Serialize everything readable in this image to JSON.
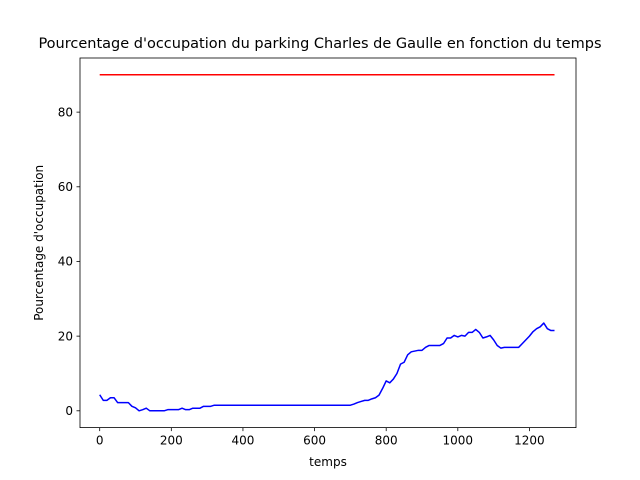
{
  "chart_data": {
    "type": "line",
    "title": "Pourcentage d'occupation du parking Charles de Gaulle en fonction du temps",
    "xlabel": "temps",
    "ylabel": "Pourcentage d'occupation",
    "xlim": [
      -55,
      1330
    ],
    "ylim": [
      -4.5,
      94.5
    ],
    "xticks": [
      0,
      200,
      400,
      600,
      800,
      1000,
      1200
    ],
    "yticks": [
      0,
      20,
      40,
      60,
      80
    ],
    "grid": false,
    "legend": "none",
    "series": [
      {
        "color": "#ff0000",
        "x": [
          0,
          1270
        ],
        "y": [
          90,
          90
        ]
      },
      {
        "color": "#0000ff",
        "x": [
          0,
          10,
          20,
          30,
          40,
          50,
          60,
          70,
          80,
          90,
          100,
          110,
          120,
          130,
          140,
          150,
          160,
          170,
          180,
          190,
          200,
          210,
          220,
          230,
          240,
          250,
          260,
          270,
          280,
          290,
          300,
          310,
          320,
          330,
          340,
          350,
          360,
          370,
          380,
          390,
          400,
          410,
          420,
          430,
          440,
          450,
          460,
          470,
          480,
          490,
          500,
          510,
          520,
          530,
          540,
          550,
          560,
          570,
          580,
          590,
          600,
          610,
          620,
          630,
          640,
          650,
          660,
          670,
          680,
          690,
          700,
          710,
          720,
          730,
          740,
          750,
          760,
          770,
          780,
          790,
          800,
          810,
          820,
          830,
          840,
          850,
          860,
          870,
          880,
          890,
          900,
          910,
          920,
          930,
          940,
          950,
          960,
          970,
          980,
          990,
          1000,
          1010,
          1020,
          1030,
          1040,
          1050,
          1060,
          1070,
          1080,
          1090,
          1100,
          1110,
          1120,
          1130,
          1140,
          1150,
          1160,
          1170,
          1180,
          1190,
          1200,
          1210,
          1220,
          1230,
          1240,
          1250,
          1260,
          1270
        ],
        "y": [
          4.3,
          2.8,
          2.8,
          3.5,
          3.5,
          2.2,
          2.2,
          2.2,
          2.2,
          1.2,
          0.8,
          0.0,
          0.3,
          0.7,
          0.0,
          0.0,
          0.0,
          0.0,
          0.0,
          0.3,
          0.3,
          0.3,
          0.3,
          0.7,
          0.3,
          0.3,
          0.7,
          0.7,
          0.7,
          1.2,
          1.2,
          1.2,
          1.5,
          1.5,
          1.5,
          1.5,
          1.5,
          1.5,
          1.5,
          1.5,
          1.5,
          1.5,
          1.5,
          1.5,
          1.5,
          1.5,
          1.5,
          1.5,
          1.5,
          1.5,
          1.5,
          1.5,
          1.5,
          1.5,
          1.5,
          1.5,
          1.5,
          1.5,
          1.5,
          1.5,
          1.5,
          1.5,
          1.5,
          1.5,
          1.5,
          1.5,
          1.5,
          1.5,
          1.5,
          1.5,
          1.5,
          1.8,
          2.2,
          2.5,
          2.8,
          2.8,
          3.2,
          3.5,
          4.2,
          6.0,
          8.0,
          7.5,
          8.5,
          10.0,
          12.5,
          13.0,
          15.0,
          15.8,
          16.0,
          16.2,
          16.2,
          17.0,
          17.5,
          17.5,
          17.5,
          17.5,
          18.0,
          19.5,
          19.5,
          20.2,
          19.8,
          20.2,
          20.0,
          21.0,
          21.0,
          21.8,
          21.0,
          19.5,
          19.8,
          20.2,
          19.0,
          17.5,
          16.8,
          17.0,
          17.0,
          17.0,
          17.0,
          17.0,
          18.0,
          19.0,
          20.0,
          21.2,
          22.0,
          22.5,
          23.5,
          22.0,
          21.5,
          21.5
        ]
      }
    ]
  }
}
